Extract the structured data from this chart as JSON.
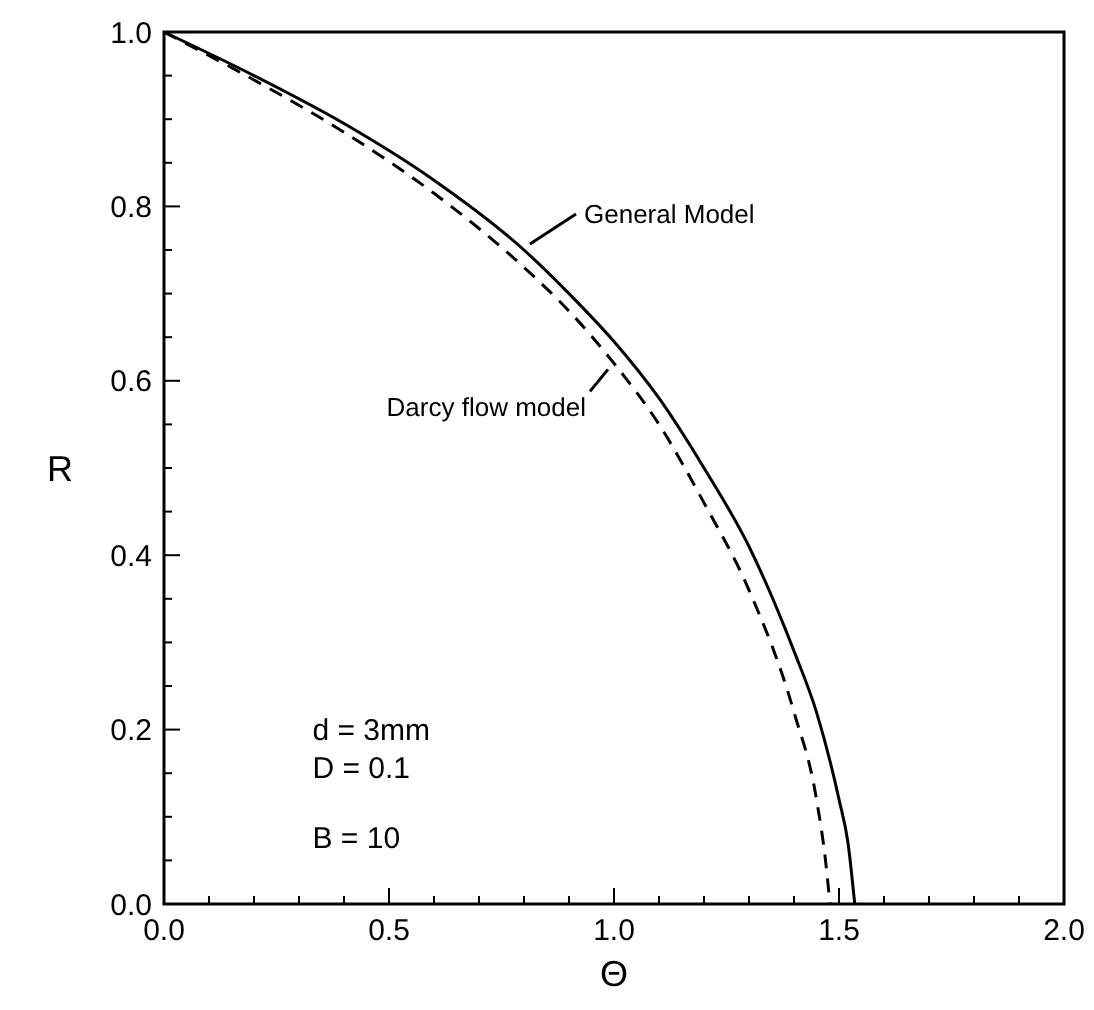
{
  "chart_data": {
    "type": "line",
    "xlabel": "Θ",
    "ylabel": "R",
    "xlim": [
      0,
      2
    ],
    "ylim": [
      0,
      1
    ],
    "xticks": [
      {
        "value": 0,
        "label": "0.0"
      },
      {
        "value": 0.1,
        "label": null
      },
      {
        "value": 0.2,
        "label": null
      },
      {
        "value": 0.3,
        "label": null
      },
      {
        "value": 0.4,
        "label": null
      },
      {
        "value": 0.5,
        "label": "0.5"
      },
      {
        "value": 0.6,
        "label": null
      },
      {
        "value": 0.7,
        "label": null
      },
      {
        "value": 0.8,
        "label": null
      },
      {
        "value": 0.9,
        "label": null
      },
      {
        "value": 1,
        "label": "1.0"
      },
      {
        "value": 1.1,
        "label": null
      },
      {
        "value": 1.2,
        "label": null
      },
      {
        "value": 1.3,
        "label": null
      },
      {
        "value": 1.4,
        "label": null
      },
      {
        "value": 1.5,
        "label": "1.5"
      },
      {
        "value": 1.6,
        "label": null
      },
      {
        "value": 1.7,
        "label": null
      },
      {
        "value": 1.8,
        "label": null
      },
      {
        "value": 1.9,
        "label": null
      },
      {
        "value": 2,
        "label": "2.0"
      }
    ],
    "yticks": [
      {
        "value": 0,
        "label": "0.0"
      },
      {
        "value": 0.05,
        "label": null
      },
      {
        "value": 0.1,
        "label": null
      },
      {
        "value": 0.15,
        "label": null
      },
      {
        "value": 0.2,
        "label": "0.2"
      },
      {
        "value": 0.25,
        "label": null
      },
      {
        "value": 0.3,
        "label": null
      },
      {
        "value": 0.35,
        "label": null
      },
      {
        "value": 0.4,
        "label": "0.4"
      },
      {
        "value": 0.45,
        "label": null
      },
      {
        "value": 0.5,
        "label": null
      },
      {
        "value": 0.55,
        "label": null
      },
      {
        "value": 0.6,
        "label": "0.6"
      },
      {
        "value": 0.65,
        "label": null
      },
      {
        "value": 0.7,
        "label": null
      },
      {
        "value": 0.75,
        "label": null
      },
      {
        "value": 0.8,
        "label": "0.8"
      },
      {
        "value": 0.85,
        "label": null
      },
      {
        "value": 0.9,
        "label": null
      },
      {
        "value": 0.95,
        "label": null
      },
      {
        "value": 1,
        "label": "1.0"
      }
    ],
    "series": [
      {
        "color": "#000000",
        "line_style": "solid",
        "x": [
          0,
          0.2,
          0.4,
          0.6,
          0.8,
          0.9,
          1.0,
          1.1,
          1.2,
          1.3,
          1.4,
          1.45,
          1.5,
          1.52,
          1.535
        ],
        "values": [
          1,
          0.95,
          0.895,
          0.83,
          0.75,
          0.7,
          0.645,
          0.58,
          0.5,
          0.41,
          0.29,
          0.22,
          0.12,
          0.07,
          0
        ]
      },
      {
        "color": "#000000",
        "line_style": "dashed",
        "x": [
          0,
          0.2,
          0.4,
          0.6,
          0.8,
          0.9,
          1.0,
          1.1,
          1.2,
          1.3,
          1.4,
          1.45,
          1.47,
          1.48
        ],
        "values": [
          1,
          0.945,
          0.885,
          0.815,
          0.73,
          0.68,
          0.62,
          0.55,
          0.46,
          0.36,
          0.22,
          0.12,
          0.05,
          0
        ]
      }
    ],
    "annotations": [
      {
        "text": "General Model",
        "x": 0.8,
        "y": 0.75
      },
      {
        "text": "Darcy flow model",
        "x": 1.0,
        "y": 0.62
      },
      "d = 3mm",
      "D = 0.1",
      "B = 10"
    ],
    "grid": false
  }
}
